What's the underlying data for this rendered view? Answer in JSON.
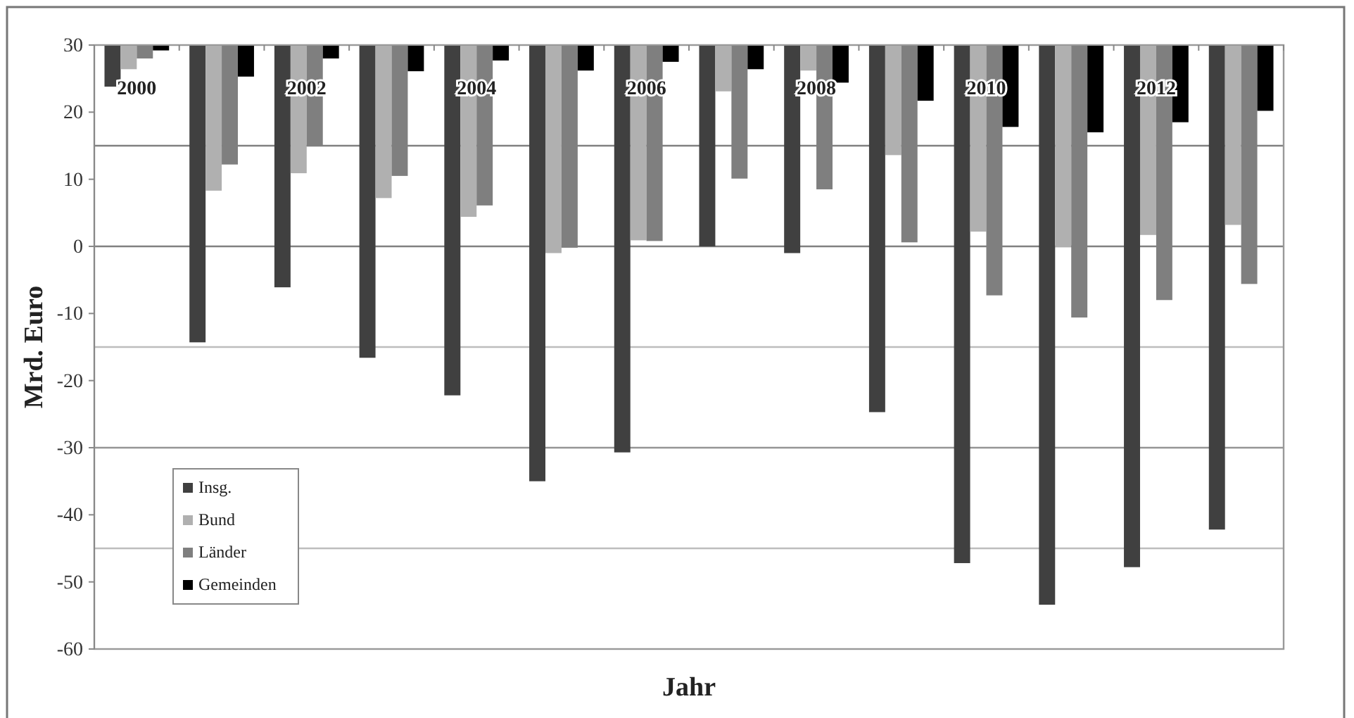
{
  "chart_data": {
    "type": "bar",
    "xlabel": "Jahr",
    "ylabel": "Mrd. Euro",
    "categories": [
      "2000",
      null,
      "2002",
      null,
      "2004",
      null,
      "2006",
      null,
      "2008",
      null,
      "2010",
      null,
      "2012",
      null
    ],
    "series": [
      {
        "name": "Insg.",
        "color": "#404040",
        "base": [
          30,
          30,
          30,
          30,
          30,
          30,
          30,
          30,
          30,
          30,
          30,
          30,
          30,
          30
        ],
        "values": [
          -6.2,
          -44.3,
          -36.1,
          -46.6,
          -52.2,
          -65.0,
          -60.7,
          -30.0,
          -31.0,
          -54.7,
          -77.2,
          -83.4,
          -77.8,
          -72.2
        ]
      },
      {
        "name": "Bund",
        "color": "#b0b0b0",
        "base": [
          30,
          30,
          30,
          30,
          30,
          30,
          30,
          30,
          30,
          30,
          30,
          30,
          30,
          30
        ],
        "values": [
          -3.6,
          -21.7,
          -19.1,
          -22.8,
          -25.6,
          -31.0,
          -29.1,
          -6.9,
          -3.8,
          -16.4,
          -27.8,
          -30.1,
          -28.3,
          -26.8
        ]
      },
      {
        "name": "Länder",
        "color": "#7f7f7f",
        "base": [
          30,
          30,
          30,
          30,
          30,
          30,
          30,
          30,
          30,
          30,
          30,
          30,
          30,
          30
        ],
        "values": [
          -2.0,
          -17.8,
          -15.0,
          -19.5,
          -23.9,
          -30.2,
          -29.2,
          -19.9,
          -21.5,
          -29.4,
          -37.3,
          -40.6,
          -38.0,
          -35.6
        ]
      },
      {
        "name": "Gemeinden",
        "color": "#000000",
        "base": [
          30,
          30,
          30,
          30,
          30,
          30,
          30,
          30,
          30,
          30,
          30,
          30,
          30,
          30
        ],
        "values": [
          -0.8,
          -4.7,
          -2.0,
          -3.9,
          -2.3,
          -3.8,
          -2.5,
          -3.6,
          -5.6,
          -8.3,
          -12.2,
          -13.0,
          -11.5,
          -9.8
        ]
      }
    ],
    "ylim": [
      -60,
      30
    ],
    "yticks": [
      30,
      20,
      10,
      0,
      -10,
      -20,
      -30,
      -40,
      -50,
      -60
    ],
    "ref_lines": [
      {
        "axis": "y",
        "value": 15,
        "color": "#808080"
      },
      {
        "axis": "y",
        "value": 0,
        "color": "#808080"
      },
      {
        "axis": "y",
        "value": -15,
        "color": "#bdbdbd"
      },
      {
        "axis": "y",
        "value": -30,
        "color": "#959595"
      },
      {
        "axis": "y",
        "value": -45,
        "color": "#bdbdbd"
      }
    ],
    "grid": false,
    "legend": "bottom left"
  }
}
